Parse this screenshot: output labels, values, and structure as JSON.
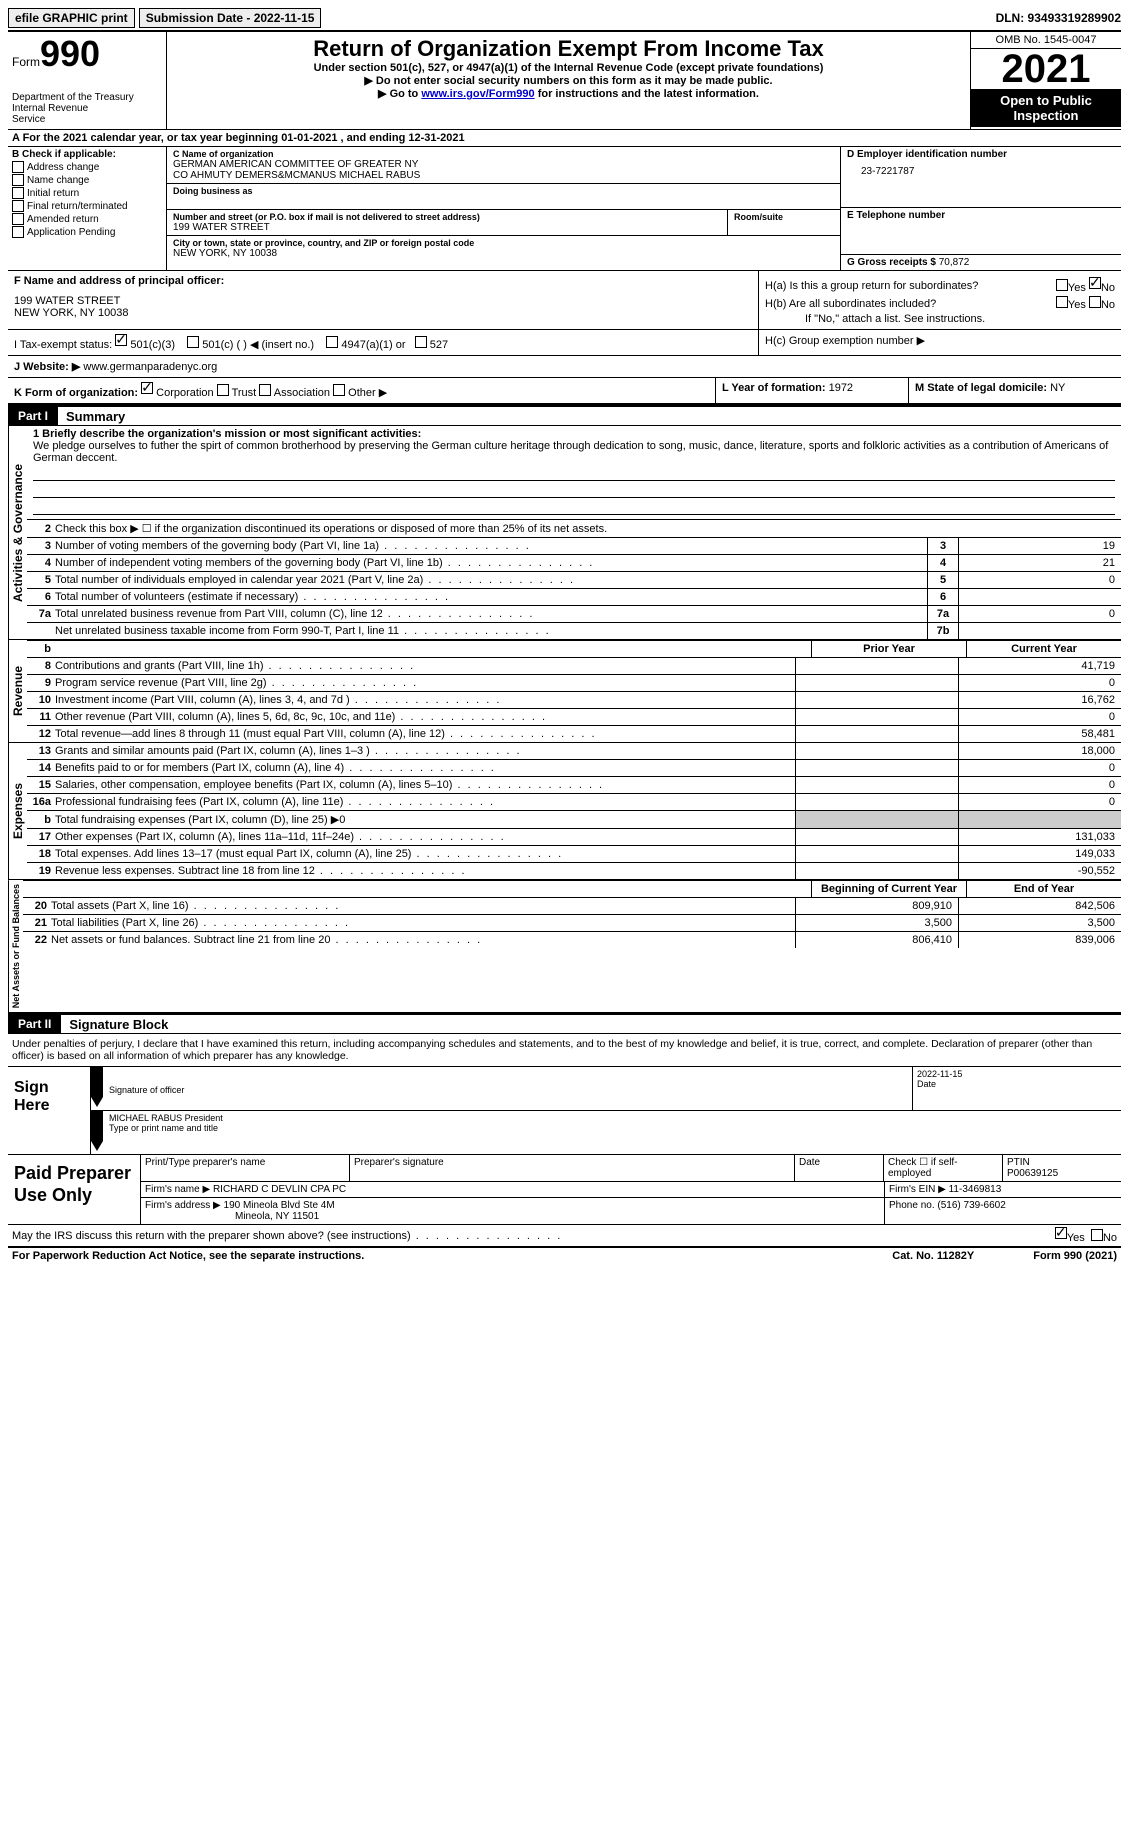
{
  "topbar": {
    "efile": "efile GRAPHIC print",
    "submission": "Submission Date - 2022-11-15",
    "dln": "DLN: 93493319289902"
  },
  "header": {
    "form_prefix": "Form",
    "form_num": "990",
    "dept": "Department of the Treasury\nInternal Revenue",
    "title": "Return of Organization Exempt From Income Tax",
    "sub1": "Under section 501(c), 527, or 4947(a)(1) of the Internal Revenue Code (except private foundations)",
    "sub2": "▶ Do not enter social security numbers on this form as it may be made public.",
    "sub3_pre": "▶ Go to ",
    "sub3_link": "www.irs.gov/Form990",
    "sub3_post": " for instructions and the latest information.",
    "omb": "OMB No. 1545-0047",
    "year": "2021",
    "open": "Open to Public Inspection"
  },
  "rowA": "A For the 2021 calendar year, or tax year beginning 01-01-2021    , and ending 12-31-2021",
  "colB": {
    "label": "B Check if applicable:",
    "items": [
      "Address change",
      "Name change",
      "Initial return",
      "Final return/terminated",
      "Amended return",
      "Application Pending"
    ]
  },
  "colC": {
    "name_label": "C Name of organization",
    "name1": "GERMAN AMERICAN COMMITTEE OF GREATER NY",
    "name2": "CO AHMUTY DEMERS&MCMANUS MICHAEL RABUS",
    "dba_label": "Doing business as",
    "street_label": "Number and street (or P.O. box if mail is not delivered to street address)",
    "room_label": "Room/suite",
    "street": "199 WATER STREET",
    "city_label": "City or town, state or province, country, and ZIP or foreign postal code",
    "city": "NEW YORK, NY  10038"
  },
  "colD": {
    "ein_label": "D Employer identification number",
    "ein": "23-7221787",
    "phone_label": "E Telephone number",
    "gross_label": "G Gross receipts $",
    "gross": "70,872"
  },
  "rowF": {
    "label": "F  Name and address of principal officer:",
    "addr1": "199 WATER STREET",
    "addr2": "NEW YORK, NY  10038"
  },
  "rowH": {
    "ha": "H(a)  Is this a group return for subordinates?",
    "hb": "H(b)  Are all subordinates included?",
    "hb_note": "If \"No,\" attach a list. See instructions.",
    "hc": "H(c)  Group exemption number ▶",
    "yes": "Yes",
    "no": "No"
  },
  "rowI": {
    "label": "I   Tax-exempt status:",
    "o1": "501(c)(3)",
    "o2": "501(c) (   ) ◀ (insert no.)",
    "o3": "4947(a)(1) or",
    "o4": "527"
  },
  "rowJ": {
    "label": "J   Website: ▶",
    "val": "www.germanparadenyc.org"
  },
  "rowK": {
    "label": "K Form of organization:",
    "o1": "Corporation",
    "o2": "Trust",
    "o3": "Association",
    "o4": "Other ▶"
  },
  "rowL": {
    "label": "L Year of formation:",
    "val": "1972"
  },
  "rowM": {
    "label": "M State of legal domicile:",
    "val": "NY"
  },
  "partI": {
    "tab": "Part I",
    "title": "Summary"
  },
  "mission": {
    "label": "1   Briefly describe the organization's mission or most significant activities:",
    "text": "We pledge ourselves to futher the spirt of common brotherhood by preserving the German culture heritage through dedication to song, music, dance, literature, sports and folkloric activities as a contribution of Americans of German deccent."
  },
  "line2": "Check this box ▶ ☐  if the organization discontinued its operations or disposed of more than 25% of its net assets.",
  "summary_lines": [
    {
      "n": "3",
      "t": "Number of voting members of the governing body (Part VI, line 1a)",
      "box": "3",
      "v": "19"
    },
    {
      "n": "4",
      "t": "Number of independent voting members of the governing body (Part VI, line 1b)",
      "box": "4",
      "v": "21"
    },
    {
      "n": "5",
      "t": "Total number of individuals employed in calendar year 2021 (Part V, line 2a)",
      "box": "5",
      "v": "0"
    },
    {
      "n": "6",
      "t": "Total number of volunteers (estimate if necessary)",
      "box": "6",
      "v": ""
    },
    {
      "n": "7a",
      "t": "Total unrelated business revenue from Part VIII, column (C), line 12",
      "box": "7a",
      "v": "0"
    },
    {
      "n": "",
      "t": "Net unrelated business taxable income from Form 990-T, Part I, line 11",
      "box": "7b",
      "v": ""
    }
  ],
  "col_heads": {
    "prior": "Prior Year",
    "current": "Current Year"
  },
  "revenue_label": "Revenue",
  "revenue_lines": [
    {
      "n": "8",
      "t": "Contributions and grants (Part VIII, line 1h)",
      "p": "",
      "c": "41,719"
    },
    {
      "n": "9",
      "t": "Program service revenue (Part VIII, line 2g)",
      "p": "",
      "c": "0"
    },
    {
      "n": "10",
      "t": "Investment income (Part VIII, column (A), lines 3, 4, and 7d )",
      "p": "",
      "c": "16,762"
    },
    {
      "n": "11",
      "t": "Other revenue (Part VIII, column (A), lines 5, 6d, 8c, 9c, 10c, and 11e)",
      "p": "",
      "c": "0"
    },
    {
      "n": "12",
      "t": "Total revenue—add lines 8 through 11 (must equal Part VIII, column (A), line 12)",
      "p": "",
      "c": "58,481"
    }
  ],
  "expenses_label": "Expenses",
  "expense_lines": [
    {
      "n": "13",
      "t": "Grants and similar amounts paid (Part IX, column (A), lines 1–3 )",
      "p": "",
      "c": "18,000"
    },
    {
      "n": "14",
      "t": "Benefits paid to or for members (Part IX, column (A), line 4)",
      "p": "",
      "c": "0"
    },
    {
      "n": "15",
      "t": "Salaries, other compensation, employee benefits (Part IX, column (A), lines 5–10)",
      "p": "",
      "c": "0"
    },
    {
      "n": "16a",
      "t": "Professional fundraising fees (Part IX, column (A), line 11e)",
      "p": "",
      "c": "0"
    },
    {
      "n": "b",
      "t": "Total fundraising expenses (Part IX, column (D), line 25) ▶0",
      "p": "shaded",
      "c": "shaded"
    },
    {
      "n": "17",
      "t": "Other expenses (Part IX, column (A), lines 11a–11d, 11f–24e)",
      "p": "",
      "c": "131,033"
    },
    {
      "n": "18",
      "t": "Total expenses. Add lines 13–17 (must equal Part IX, column (A), line 25)",
      "p": "",
      "c": "149,033"
    },
    {
      "n": "19",
      "t": "Revenue less expenses. Subtract line 18 from line 12",
      "p": "",
      "c": "-90,552"
    }
  ],
  "net_label": "Net Assets or Fund Balances",
  "net_heads": {
    "beg": "Beginning of Current Year",
    "end": "End of Year"
  },
  "net_lines": [
    {
      "n": "20",
      "t": "Total assets (Part X, line 16)",
      "p": "809,910",
      "c": "842,506"
    },
    {
      "n": "21",
      "t": "Total liabilities (Part X, line 26)",
      "p": "3,500",
      "c": "3,500"
    },
    {
      "n": "22",
      "t": "Net assets or fund balances. Subtract line 21 from line 20",
      "p": "806,410",
      "c": "839,006"
    }
  ],
  "partII": {
    "tab": "Part II",
    "title": "Signature Block"
  },
  "sig_declare": "Under penalties of perjury, I declare that I have examined this return, including accompanying schedules and statements, and to the best of my knowledge and belief, it is true, correct, and complete. Declaration of preparer (other than officer) is based on all information of which preparer has any knowledge.",
  "sign_here": "Sign Here",
  "sig_officer_label": "Signature of officer",
  "sig_date_label": "Date",
  "sig_date": "2022-11-15",
  "sig_name": "MICHAEL RABUS  President",
  "sig_name_label": "Type or print name and title",
  "paid_label": "Paid Preparer Use Only",
  "prep": {
    "name_label": "Print/Type preparer's name",
    "sig_label": "Preparer's signature",
    "date_label": "Date",
    "check_label": "Check ☐ if self-employed",
    "ptin_label": "PTIN",
    "ptin": "P00639125",
    "firm_name_label": "Firm's name    ▶",
    "firm_name": "RICHARD C DEVLIN CPA PC",
    "firm_ein_label": "Firm's EIN ▶",
    "firm_ein": "11-3469813",
    "firm_addr_label": "Firm's address ▶",
    "firm_addr1": "190 Mineola Blvd Ste 4M",
    "firm_addr2": "Mineola, NY  11501",
    "phone_label": "Phone no.",
    "phone": "(516) 739-6602"
  },
  "discuss": "May the IRS discuss this return with the preparer shown above? (see instructions)",
  "footer": {
    "left": "For Paperwork Reduction Act Notice, see the separate instructions.",
    "mid": "Cat. No. 11282Y",
    "right": "Form 990 (2021)"
  },
  "governance_label": "Activities & Governance",
  "b_label": "b"
}
